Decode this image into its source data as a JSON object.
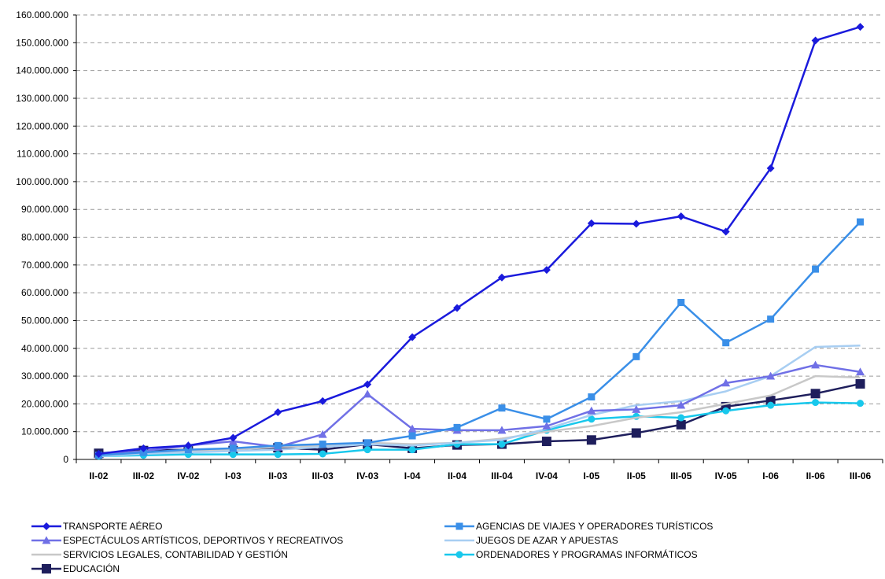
{
  "chart_data": {
    "type": "line",
    "title": "",
    "xlabel": "",
    "ylabel": "",
    "ylim": [
      0,
      160000000
    ],
    "y_step": 10000000,
    "grid": true,
    "legend_position": "bottom",
    "y_tick_labels": [
      "0",
      "10.000.000",
      "20.000.000",
      "30.000.000",
      "40.000.000",
      "50.000.000",
      "60.000.000",
      "70.000.000",
      "80.000.000",
      "90.000.000",
      "100.000.000",
      "110.000.000",
      "120.000.000",
      "130.000.000",
      "140.000.000",
      "150.000.000",
      "160.000.000"
    ],
    "categories": [
      "II-02",
      "III-02",
      "IV-02",
      "I-03",
      "II-03",
      "III-03",
      "IV-03",
      "I-04",
      "II-04",
      "III-04",
      "IV-04",
      "I-05",
      "II-05",
      "III-05",
      "IV-05",
      "I-06",
      "II-06",
      "III-06"
    ],
    "series": [
      {
        "name": "TRANSPORTE AÉREO",
        "color": "#1A1ADC",
        "marker": "diamond",
        "values": [
          2000000,
          4000000,
          5000000,
          7800000,
          17000000,
          21000000,
          27000000,
          44000000,
          54500000,
          65500000,
          68200000,
          85000000,
          84800000,
          87500000,
          82000000,
          104800000,
          150800000,
          155700000
        ]
      },
      {
        "name": "AGENCIAS DE VIAJES Y OPERADORES TURÍSTICOS",
        "color": "#3A8FE8",
        "marker": "square",
        "values": [
          1500000,
          2500000,
          3500000,
          4000000,
          5000000,
          5500000,
          6000000,
          8500000,
          11500000,
          18500000,
          14500000,
          22500000,
          37000000,
          56500000,
          42000000,
          50500000,
          68500000,
          85500000
        ]
      },
      {
        "name": "ESPECTÁCULOS ARTÍSTICOS, DEPORTIVOS Y RECREATIVOS",
        "color": "#7070E6",
        "marker": "triangle",
        "values": [
          1800000,
          3000000,
          5000000,
          6500000,
          4500000,
          9000000,
          23500000,
          11000000,
          10500000,
          10500000,
          12000000,
          17500000,
          18000000,
          19500000,
          27500000,
          30000000,
          34000000,
          31500000
        ]
      },
      {
        "name": "JUEGOS DE AZAR Y APUESTAS",
        "color": "#A8CEF2",
        "marker": "none",
        "values": [
          1200000,
          2000000,
          2500000,
          3000000,
          3500000,
          4500000,
          5500000,
          5000000,
          6000000,
          7000000,
          11000000,
          16000000,
          19500000,
          21000000,
          24500000,
          30000000,
          40500000,
          41000000
        ]
      },
      {
        "name": "SERVICIOS LEGALES, CONTABILIDAD Y GESTIÓN",
        "color": "#C8C8C8",
        "marker": "none",
        "values": [
          1500000,
          2500000,
          3000000,
          3500000,
          4500000,
          5000000,
          6000000,
          5500000,
          6000000,
          7500000,
          10000000,
          12000000,
          15000000,
          17000000,
          20000000,
          23000000,
          30000000,
          29500000
        ]
      },
      {
        "name": "ORDENADORES Y PROGRAMAS INFORMÁTICOS",
        "color": "#18C8EC",
        "marker": "circle",
        "values": [
          1200000,
          1500000,
          1800000,
          1800000,
          1800000,
          2000000,
          3500000,
          3500000,
          5500000,
          5500000,
          10500000,
          14500000,
          15500000,
          15000000,
          17500000,
          19500000,
          20500000,
          20200000
        ]
      },
      {
        "name": "EDUCACIÓN",
        "color": "#1E1E5C",
        "marker": "bigsquare",
        "values": [
          2200000,
          3200000,
          3500000,
          3200000,
          4200000,
          3500000,
          5500000,
          4000000,
          5200000,
          5500000,
          6500000,
          7000000,
          9500000,
          12500000,
          19000000,
          21200000,
          23700000,
          27200000
        ]
      }
    ]
  }
}
